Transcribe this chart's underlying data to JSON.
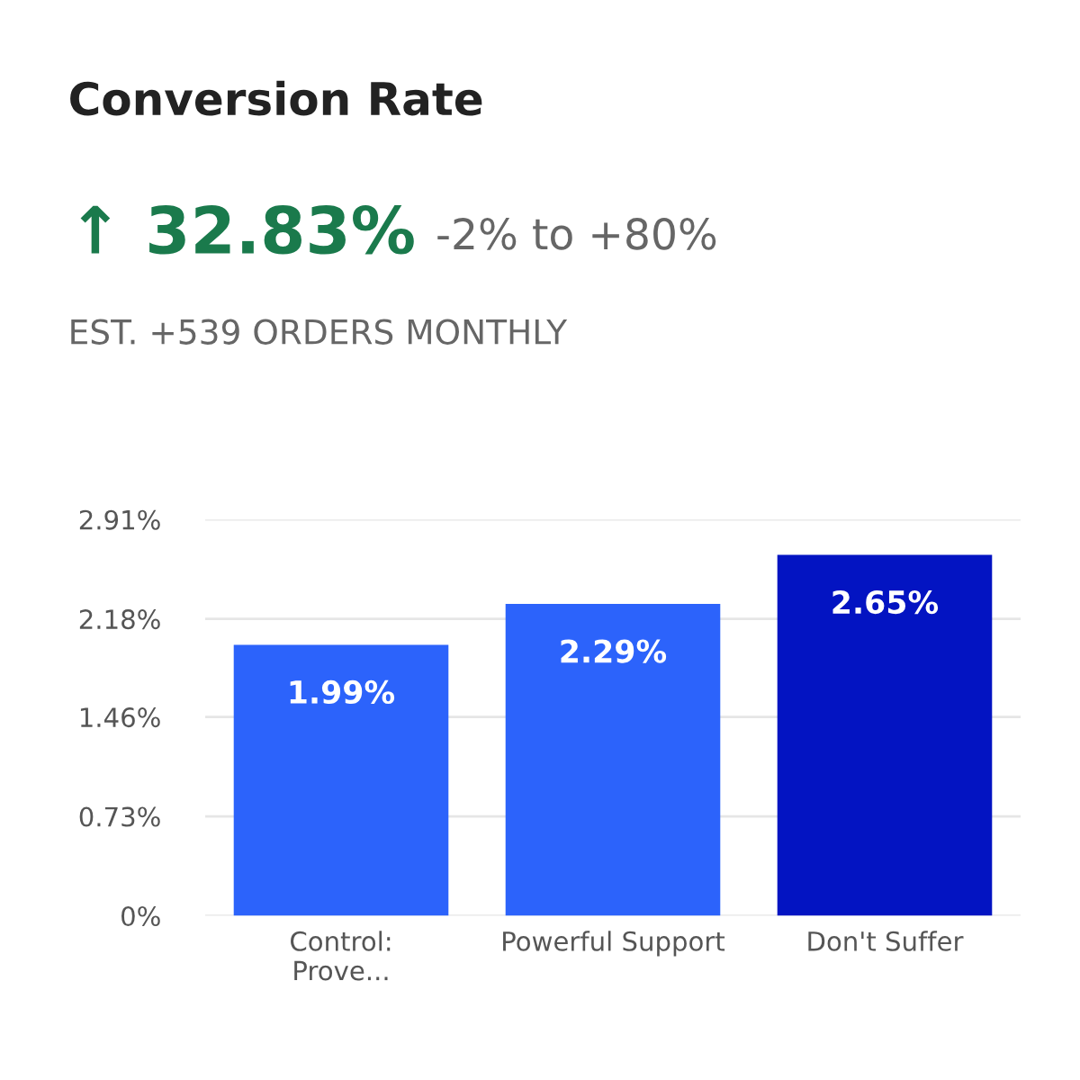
{
  "chart_data": {
    "type": "bar",
    "title": "Conversion Rate",
    "subtitle": "↑ 32.83%",
    "annotations": [
      "-2% to +80%",
      "EST. +539 ORDERS MONTHLY"
    ],
    "categories": [
      "Control:\nProve...",
      "Powerful Support",
      "Don't Suffer"
    ],
    "values": [
      1.99,
      2.29,
      2.65
    ],
    "colors": [
      "#2c63fb",
      "#2c63fb",
      "#0314c2"
    ],
    "value_labels": [
      "1.99%",
      "2.29%",
      "2.65%"
    ],
    "ylim": [
      0,
      2.91
    ],
    "yticks": [
      {
        "value": 0,
        "label": "0%"
      },
      {
        "value": 0.73,
        "label": "0.73%"
      },
      {
        "value": 1.46,
        "label": "1.46%"
      },
      {
        "value": 2.18,
        "label": "2.18%"
      },
      {
        "value": 2.91,
        "label": "2.91%"
      }
    ],
    "grid": "y"
  }
}
